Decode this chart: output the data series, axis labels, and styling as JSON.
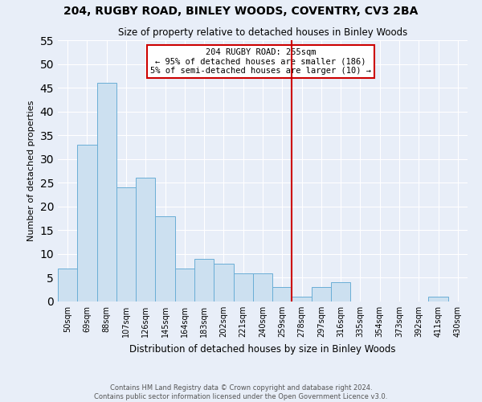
{
  "title_line1": "204, RUGBY ROAD, BINLEY WOODS, COVENTRY, CV3 2BA",
  "title_line2": "Size of property relative to detached houses in Binley Woods",
  "xlabel": "Distribution of detached houses by size in Binley Woods",
  "ylabel": "Number of detached properties",
  "bar_labels": [
    "50sqm",
    "69sqm",
    "88sqm",
    "107sqm",
    "126sqm",
    "145sqm",
    "164sqm",
    "183sqm",
    "202sqm",
    "221sqm",
    "240sqm",
    "259sqm",
    "278sqm",
    "297sqm",
    "316sqm",
    "335sqm",
    "354sqm",
    "373sqm",
    "392sqm",
    "411sqm",
    "430sqm"
  ],
  "bar_values": [
    7,
    33,
    46,
    24,
    26,
    18,
    7,
    9,
    8,
    6,
    6,
    3,
    1,
    3,
    4,
    0,
    0,
    0,
    0,
    1,
    0
  ],
  "bar_color": "#cce0f0",
  "bar_edge_color": "#6aaed6",
  "background_color": "#e8eef8",
  "grid_color": "#ffffff",
  "ylim": [
    0,
    55
  ],
  "yticks": [
    0,
    5,
    10,
    15,
    20,
    25,
    30,
    35,
    40,
    45,
    50,
    55
  ],
  "vline_x_index": 11.5,
  "vline_color": "#cc0000",
  "annotation_text_line1": "204 RUGBY ROAD: 255sqm",
  "annotation_text_line2": "← 95% of detached houses are smaller (186)",
  "annotation_text_line3": "5% of semi-detached houses are larger (10) →",
  "footer_line1": "Contains HM Land Registry data © Crown copyright and database right 2024.",
  "footer_line2": "Contains public sector information licensed under the Open Government Licence v3.0."
}
